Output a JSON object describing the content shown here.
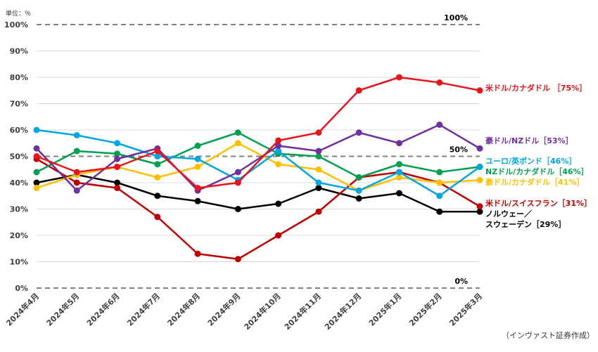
{
  "chart_data": {
    "type": "line",
    "unit_label": "単位：％",
    "source_note": "（インヴァスト証券作成）",
    "categories": [
      "2024年4月",
      "2024年5月",
      "2024年6月",
      "2024年7月",
      "2024年8月",
      "2024年9月",
      "2024年10月",
      "2024年11月",
      "2024年12月",
      "2025年1月",
      "2025年2月",
      "2025年3月"
    ],
    "ylim": [
      0,
      100
    ],
    "y_ticks": [
      0,
      10,
      20,
      30,
      40,
      50,
      60,
      70,
      80,
      90,
      100
    ],
    "y_tick_labels": [
      "0%",
      "10%",
      "20%",
      "30%",
      "40%",
      "50%",
      "60%",
      "70%",
      "80%",
      "90%",
      "100%"
    ],
    "reference_lines": [
      {
        "value": 100,
        "label": "100%"
      },
      {
        "value": 50,
        "label": "50%"
      },
      {
        "value": 0,
        "label": "0%"
      }
    ],
    "grid": true,
    "legend_placement": "right (end labels)",
    "series": [
      {
        "name": "米ドル/カナダドル",
        "end_label": "米ドル/カナダドル ［75%］",
        "color": "#e8141c",
        "values": [
          50,
          44,
          46,
          52,
          38,
          40,
          56,
          59,
          75,
          80,
          78,
          75
        ]
      },
      {
        "name": "豪ドル/NZドル",
        "end_label": "豪ドル/NZドル［53%］",
        "color": "#7030a0",
        "values": [
          53,
          37,
          49,
          53,
          37,
          44,
          54,
          52,
          59,
          55,
          62,
          53
        ]
      },
      {
        "name": "ユーロ/英ポンド",
        "end_label": "ユーロ/英ポンド［46%］",
        "color": "#00a6e0",
        "values": [
          60,
          58,
          55,
          50,
          49,
          41,
          52,
          40,
          37,
          44,
          35,
          46
        ]
      },
      {
        "name": "NZドル/カナダドル",
        "end_label": "NZドル/カナダドル［46%］",
        "color": "#00a050",
        "values": [
          44,
          52,
          51,
          47,
          54,
          59,
          51,
          50,
          42,
          47,
          44,
          46
        ]
      },
      {
        "name": "豪ドル/カナダドル",
        "end_label": "豪ドル/カナダドル［41%］",
        "color": "#ffc000",
        "values": [
          38,
          43,
          46,
          42,
          46,
          55,
          47,
          45,
          37,
          42,
          40,
          41
        ]
      },
      {
        "name": "米ドル/スイスフラン",
        "end_label": "米ドル/スイスフラン［31%］",
        "color": "#c00000",
        "values": [
          49,
          40,
          38,
          27,
          13,
          11,
          20,
          29,
          42,
          44,
          40,
          31
        ]
      },
      {
        "name": "ノルウェー/スウェーデン",
        "end_label": "ノルウェー／\nスウェーデン［29%］",
        "color": "#000000",
        "values": [
          40,
          43,
          40,
          35,
          33,
          30,
          32,
          38,
          34,
          36,
          29,
          29
        ]
      }
    ]
  }
}
